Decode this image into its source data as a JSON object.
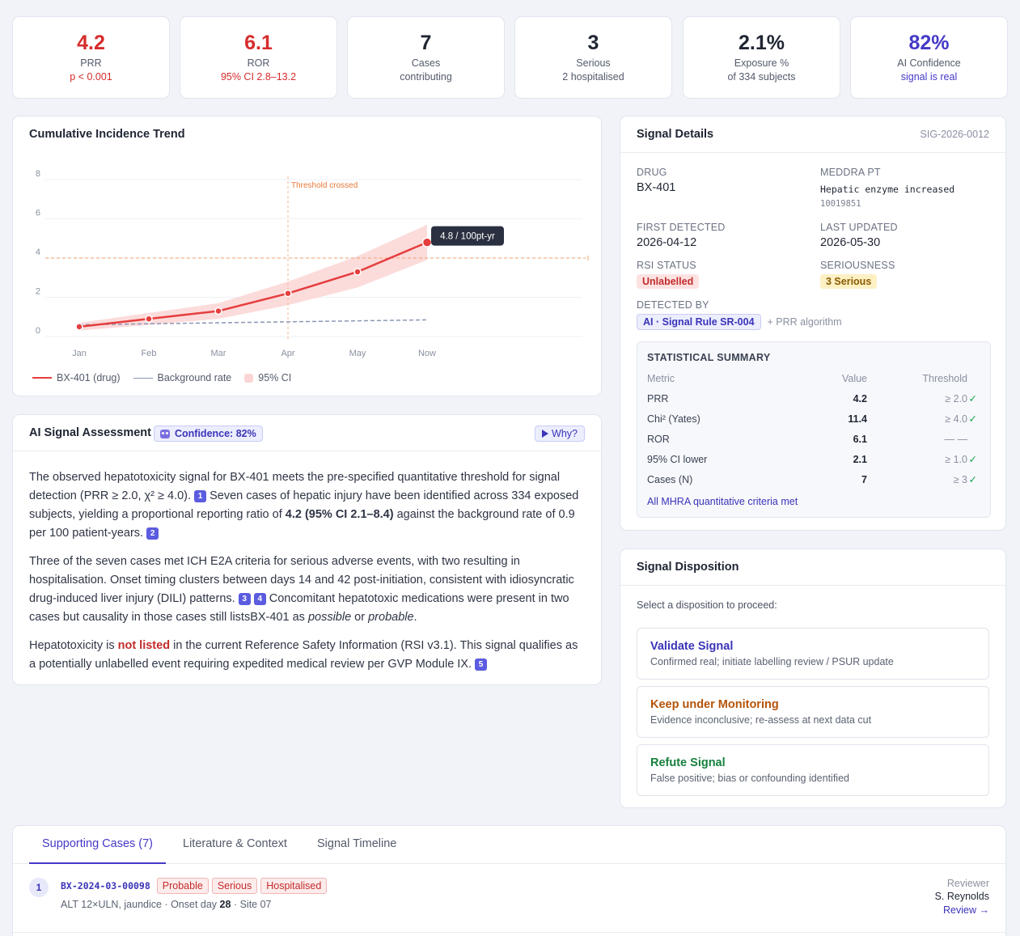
{
  "kpis": [
    {
      "value": "4.2",
      "label": "PRR",
      "sub": "p < 0.001"
    },
    {
      "value": "6.1",
      "label": "ROR",
      "sub": "95% CI 2.8–13.2"
    },
    {
      "value": "7",
      "label": "Cases",
      "sub": "contributing"
    },
    {
      "value": "3",
      "label": "Serious",
      "sub": "2 hospitalised"
    },
    {
      "value": "2.1%",
      "label": "Exposure %",
      "sub": "of 334 subjects"
    },
    {
      "value": "82%",
      "label": "AI Confidence",
      "sub": "signal is real"
    }
  ],
  "trend": {
    "title": "Cumulative Incidence Trend",
    "threshold_annotation": "Threshold crossed",
    "tooltip": "4.8 / 100pt-yr",
    "legend": [
      "BX-401 (drug)",
      "Background rate",
      "95% CI"
    ]
  },
  "chart_data": {
    "type": "line",
    "x": [
      "Jan",
      "Feb",
      "Mar",
      "Apr",
      "May",
      "Now"
    ],
    "series": [
      {
        "name": "BX-401 (drug)",
        "values": [
          0.5,
          0.9,
          1.3,
          2.2,
          3.3,
          4.8
        ],
        "color": "#e53e3e"
      },
      {
        "name": "Background rate",
        "values": [
          0.6,
          0.65,
          0.7,
          0.75,
          0.8,
          0.85
        ],
        "color": "#8a96b3"
      }
    ],
    "ci_band": {
      "name": "95% CI",
      "lower": [
        0.3,
        0.6,
        0.9,
        1.6,
        2.5,
        3.9
      ],
      "upper": [
        0.7,
        1.2,
        1.7,
        2.8,
        4.1,
        5.7
      ]
    },
    "threshold": 4,
    "ylim": [
      0,
      8
    ],
    "yticks": [
      0,
      2,
      4,
      6,
      8
    ],
    "threshold_marker_x": "Apr",
    "grid": true
  },
  "ai": {
    "title": "AI Signal Assessment",
    "confidence": "Confidence: 82%",
    "why": "Why?",
    "p1a": "The observed hepatotoxicity signal for BX-401 meets the pre-specified quantitative threshold for signal detection (PRR ≥ 2.0, χ² ≥ 4.0).",
    "ref1": "1",
    "p1b": "Seven cases of hepatic injury have been identified across 334 exposed subjects, yielding a proportional reporting ratio of",
    "p1bold": "4.2 (95% CI 2.1–8.4)",
    "p1c": "against the background rate of 0.9 per 100 patient-years.",
    "ref2": "2",
    "p2a": "Three of the seven cases met ICH E2A criteria for serious adverse events, with two resulting in hospitalisation. Onset timing clusters between days 14 and 42 post-initiation, consistent with idiosyncratic drug-induced liver injury (DILI) patterns.",
    "ref3": "3",
    "ref4": "4",
    "p2b": "Concomitant hepatotoxic medications were present in two cases but causality in those cases still listsBX-401 as",
    "p2i1": "possible",
    "p2or": "or",
    "p2i2": "probable",
    "p2end": ".",
    "p3a": "Hepatotoxicity is",
    "p3bold": "not listed",
    "p3b": "in the current Reference Safety Information (RSI v3.1). This signal qualifies as a potentially unlabelled event requiring expedited medical review per GVP Module IX.",
    "ref5": "5"
  },
  "details": {
    "title": "Signal Details",
    "id": "SIG-2026-0012",
    "drug_label": "DRUG",
    "drug": "BX-401",
    "pt_label": "MEDDRA PT",
    "pt": "Hepatic enzyme increased",
    "pt_code": "10019851",
    "first_label": "FIRST DETECTED",
    "first": "2026-04-12",
    "updated_label": "LAST UPDATED",
    "updated": "2026-05-30",
    "rsi_label": "RSI STATUS",
    "rsi": "Unlabelled",
    "ser_label": "SERIOUSNESS",
    "ser": "3 Serious",
    "det_label": "DETECTED BY",
    "det": "AI · Signal Rule SR-004",
    "det_extra": "+ PRR algorithm",
    "stats_title": "STATISTICAL SUMMARY",
    "stats_cols": [
      "Metric",
      "Value",
      "Threshold"
    ],
    "stats_rows": [
      {
        "metric": "PRR",
        "value": "4.2",
        "threshold": "≥ 2.0",
        "check": "✓"
      },
      {
        "metric": "Chi² (Yates)",
        "value": "11.4",
        "threshold": "≥ 4.0",
        "check": "✓"
      },
      {
        "metric": "ROR",
        "value": "6.1",
        "threshold": "— —",
        "check": ""
      },
      {
        "metric": "95% CI lower",
        "value": "2.1",
        "threshold": "≥ 1.0",
        "check": "✓"
      },
      {
        "metric": "Cases (N)",
        "value": "7",
        "threshold": "≥ 3",
        "check": "✓"
      }
    ],
    "stats_footer": "All MHRA quantitative criteria met"
  },
  "disposition": {
    "title": "Signal Disposition",
    "prompt": "Select a disposition to proceed:",
    "options": [
      {
        "title": "Validate Signal",
        "desc": "Confirmed real; initiate labelling review / PSUR update",
        "color": "#3b34b8"
      },
      {
        "title": "Keep under Monitoring",
        "desc": "Evidence inconclusive; re-assess at next data cut",
        "color": "#b45309"
      },
      {
        "title": "Refute Signal",
        "desc": "False positive; bias or confounding identified",
        "color": "#15803d"
      }
    ]
  },
  "cases": {
    "tabs": [
      "Supporting Cases (7)",
      "Literature & Context",
      "Signal Timeline"
    ],
    "row": {
      "num": "1",
      "id": "BX-2024-03-00098",
      "tags": [
        "Probable",
        "Serious",
        "Hospitalised"
      ],
      "desc_a": "ALT 12×ULN, jaundice · Onset day",
      "desc_bold": "28",
      "desc_b": "· Site 07",
      "reviewer_label": "Reviewer",
      "reviewer": "S. Reynolds",
      "review_link": "Review →"
    }
  }
}
